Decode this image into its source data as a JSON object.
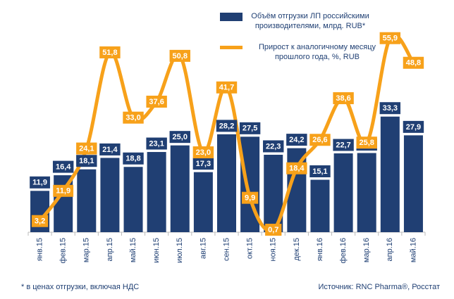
{
  "chart_data": {
    "type": "bar-line",
    "categories": [
      "янв.15",
      "фев.15",
      "мар.15",
      "апр.15",
      "май.15",
      "июн.15",
      "июл.15",
      "авг.15",
      "сен.15",
      "окт.15",
      "ноя.15",
      "дек.15",
      "янв.16",
      "фев.16",
      "мар.16",
      "апр.16",
      "май.16"
    ],
    "series": [
      {
        "name": "Объём отгрузки ЛП российскими производителями, млрд. RUB*",
        "type": "bar",
        "color": "#203f73",
        "values": [
          11.9,
          16.4,
          18.1,
          21.4,
          18.8,
          23.1,
          25.0,
          17.3,
          28.2,
          27.5,
          22.3,
          24.2,
          15.1,
          22.7,
          22.8,
          33.3,
          27.9
        ],
        "value_labels": [
          "11,9",
          "16,4",
          "18,1",
          "21,4",
          "18,8",
          "23,1",
          "25,0",
          "17,3",
          "28,2",
          "27,5",
          "22,3",
          "24,2",
          "15,1",
          "22,7",
          "22,8",
          "33,3",
          "27,9"
        ]
      },
      {
        "name": "Прирост к аналогичному месяцу прошлого года, %, RUB",
        "type": "line",
        "axis": "y2",
        "color": "#f7a11a",
        "values": [
          3.2,
          11.9,
          24.1,
          51.8,
          33.0,
          37.6,
          50.8,
          23.0,
          41.7,
          9.9,
          0.7,
          18.4,
          26.6,
          38.6,
          25.8,
          55.9,
          48.8
        ],
        "value_labels": [
          "3,2",
          "11,9",
          "24,1",
          "51,8",
          "33,0",
          "37,6",
          "50,8",
          "23,0",
          "41,7",
          "9,9",
          "0,7",
          "18,4",
          "26,6",
          "38,6",
          "25,8",
          "55,9",
          "48,8"
        ]
      }
    ],
    "ylim": [
      0,
      60
    ],
    "y2lim": [
      0,
      60
    ],
    "footnote": "* в ценах отгрузки, включая НДС",
    "source": "Источник: RNC Pharma®, Росстат"
  }
}
